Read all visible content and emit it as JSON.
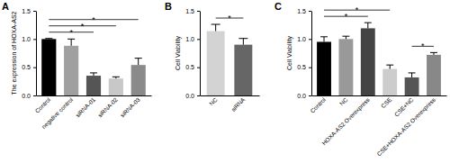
{
  "chart_data": [
    {
      "type": "bar",
      "title": "A",
      "y_label": "The expression of HOXA-AS2",
      "categories": [
        "Control",
        "negative control",
        "siRNA-01",
        "siRNA-02",
        "siRNA-03"
      ],
      "values": [
        1.0,
        0.88,
        0.35,
        0.3,
        0.54
      ],
      "errors": [
        0.01,
        0.12,
        0.05,
        0.03,
        0.12
      ],
      "colors": [
        "#000000",
        "#a0a0a0",
        "#555555",
        "#c8c8c8",
        "#8a8a8a"
      ],
      "ylim": [
        0,
        1.5
      ],
      "yticks": [
        {
          "value": 0,
          "label": "0.0"
        },
        {
          "value": 0.5,
          "label": "0.5"
        },
        {
          "value": 1,
          "label": "1.0"
        },
        {
          "value": 1.5,
          "label": "1.5"
        }
      ],
      "significance": [
        {
          "pair": [
            "Control",
            "siRNA-01"
          ],
          "label": "*"
        },
        {
          "pair": [
            "Control",
            "siRNA-02"
          ],
          "label": "*"
        },
        {
          "pair": [
            "Control",
            "siRNA-03"
          ],
          "label": "*"
        }
      ]
    },
    {
      "type": "bar",
      "title": "B",
      "y_label": "Cell Viability",
      "categories": [
        "NC",
        "siRNA"
      ],
      "values": [
        1.14,
        0.9
      ],
      "errors": [
        0.12,
        0.11
      ],
      "colors": [
        "#d3d3d3",
        "#666666"
      ],
      "ylim": [
        0,
        1.5
      ],
      "yticks": [
        {
          "value": 0,
          "label": "0.0"
        },
        {
          "value": 0.5,
          "label": "0.5"
        },
        {
          "value": 1,
          "label": "1.0"
        },
        {
          "value": 1.5,
          "label": "1.5"
        }
      ],
      "significance": [
        {
          "pair": [
            "NC",
            "siRNA"
          ],
          "label": "*"
        }
      ]
    },
    {
      "type": "bar",
      "title": "C",
      "y_label": "Cell Viability",
      "categories": [
        "Control",
        "NC",
        "HOXA-AS2 Overexpress",
        "CSE",
        "CSE+NC",
        "CSE+HOXA-AS2 Overexpress"
      ],
      "values": [
        0.95,
        1.0,
        1.19,
        0.47,
        0.32,
        0.72
      ],
      "errors": [
        0.09,
        0.05,
        0.1,
        0.07,
        0.08,
        0.04
      ],
      "colors": [
        "#000000",
        "#999999",
        "#444444",
        "#cccccc",
        "#555555",
        "#888888"
      ],
      "ylim": [
        0,
        1.5
      ],
      "yticks": [
        {
          "value": 0,
          "label": "0.0"
        },
        {
          "value": 0.5,
          "label": "0.5"
        },
        {
          "value": 1,
          "label": "1.0"
        },
        {
          "value": 1.5,
          "label": "1.5"
        }
      ],
      "significance": [
        {
          "pair": [
            "Control",
            "HOXA-AS2 Overexpress"
          ],
          "label": "*"
        },
        {
          "pair": [
            "Control",
            "CSE"
          ],
          "label": "*"
        },
        {
          "pair": [
            "CSE+NC",
            "CSE+HOXA-AS2 Overexpress"
          ],
          "label": "*"
        }
      ]
    }
  ]
}
